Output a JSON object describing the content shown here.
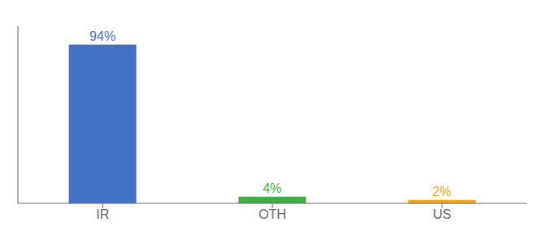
{
  "chart_data": {
    "type": "bar",
    "categories": [
      "IR",
      "OTH",
      "US"
    ],
    "values": [
      94,
      4,
      2
    ],
    "value_labels": [
      "94%",
      "4%",
      "2%"
    ],
    "colors": [
      "#4472c4",
      "#3cb043",
      "#f5a623"
    ],
    "ylim": [
      0,
      105
    ],
    "data_labels": true,
    "tick_labels": "x",
    "grid": false
  }
}
